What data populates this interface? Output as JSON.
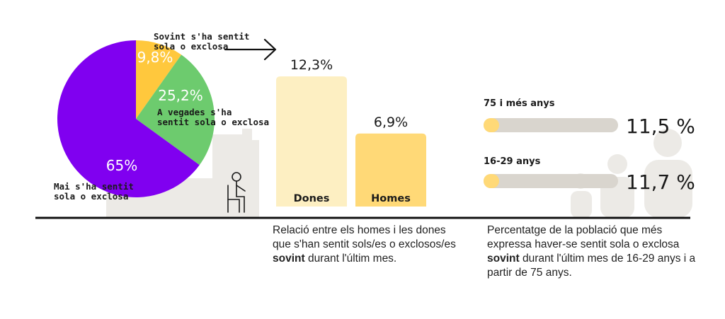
{
  "chart_data": [
    {
      "type": "pie",
      "slices": [
        {
          "label": "Sovint s'ha sentit sola o exclosa",
          "value": 9.8,
          "value_label": "9,8%",
          "color": "#FFC83D"
        },
        {
          "label": "A vegades s'ha sentit sola o exclosa",
          "value": 25.2,
          "value_label": "25,2%",
          "color": "#6DCB6E"
        },
        {
          "label": "Mai s'ha sentit sola o exclosa",
          "value": 65,
          "value_label": "65%",
          "color": "#8000F0"
        }
      ],
      "label_lines": [
        [
          "Sovint s'ha sentit",
          "sola o exclosa"
        ],
        [
          "A vegades s'ha",
          "sentit sola o exclosa"
        ],
        [
          "Mai s'ha sentit",
          "sola o exclosa"
        ]
      ]
    },
    {
      "type": "bar",
      "categories": [
        "Dones",
        "Homes"
      ],
      "values": [
        12.3,
        6.9
      ],
      "value_labels": [
        "12,3%",
        "6,9%"
      ],
      "colors": [
        "#FDEFC2",
        "#FFD977"
      ],
      "ylim": [
        0,
        12.3
      ]
    },
    {
      "type": "bar",
      "orientation": "horizontal",
      "categories": [
        "75 i més anys",
        "16-29 anys"
      ],
      "values": [
        11.5,
        11.7
      ],
      "value_labels": [
        "11,5 %",
        "11,7 %"
      ],
      "bar_color": "#FFD977",
      "track_color": "#D9D5CE"
    }
  ],
  "captions": {
    "left": {
      "before": "Relació entre els homes i les dones que s'han sentit sols/es o exclosos/es ",
      "bold": "sovint",
      "after": " durant l'últim mes."
    },
    "right": {
      "before": "Percentatge de la població que més expressa haver-se sentit sola o exclosa ",
      "bold": "sovint",
      "after": " durant l'últim mes de 16-29 anys i a partir de 75 anys."
    }
  },
  "colors": {
    "pie_sovint": "#FFC83D",
    "pie_vegades": "#6DCB6E",
    "pie_mai": "#8000F0",
    "bar_dones": "#FDEFC2",
    "bar_homes": "#FFD977",
    "track": "#D9D5CE",
    "silhouette": "#ECEAE6",
    "baseline": "#111111"
  },
  "icons": [
    "arrow-right-icon",
    "seated-person-icon",
    "people-silhouette-icon"
  ]
}
